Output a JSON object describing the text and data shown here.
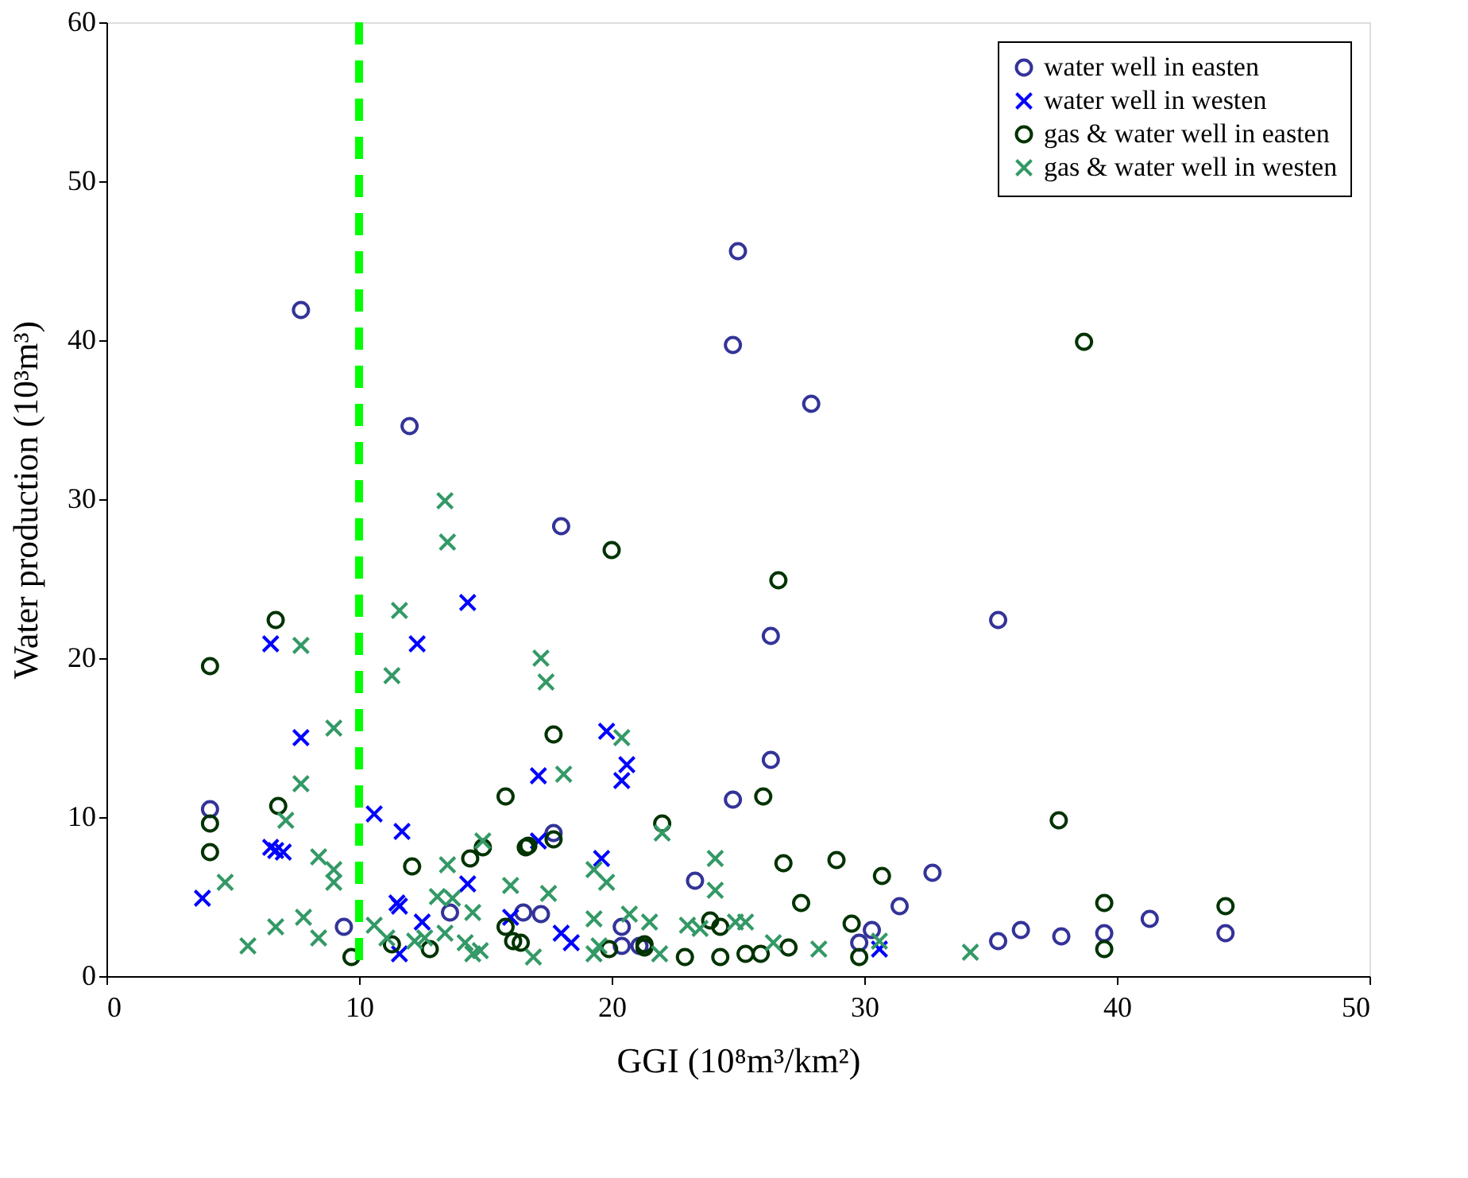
{
  "chart_data": {
    "type": "scatter",
    "xlabel": "GGI  (10⁸m³/km²)",
    "ylabel": "Water production (10³m³)",
    "xlim": [
      0,
      50
    ],
    "xticks": [
      0,
      10,
      20,
      30,
      40,
      50
    ],
    "ylim": [
      0,
      60
    ],
    "yticks": [
      0,
      10,
      20,
      30,
      40,
      50,
      60
    ],
    "grid": false,
    "legend": "top right",
    "series": [
      {
        "name": "water well in easten",
        "color": "#333399",
        "marker": "circle",
        "x": [
          7.7,
          12.0,
          18.0,
          25.0,
          24.8,
          27.9,
          26.3,
          35.3,
          26.3,
          24.8,
          4.1,
          9.4,
          13.6,
          16.5,
          17.2,
          17.7,
          20.4,
          20.4,
          21.1,
          23.3,
          32.7,
          31.4,
          30.3,
          29.8,
          35.3,
          36.2,
          37.8,
          39.5,
          41.3,
          44.3
        ],
        "values": [
          41.9,
          34.6,
          28.3,
          45.6,
          39.7,
          36.0,
          21.4,
          22.4,
          13.6,
          11.1,
          10.5,
          3.1,
          4.0,
          4.0,
          3.9,
          9.0,
          3.1,
          1.9,
          1.9,
          6.0,
          6.5,
          4.4,
          2.9,
          2.1,
          2.2,
          2.9,
          2.5,
          2.7,
          3.6,
          2.7
        ]
      },
      {
        "name": "water well in westen",
        "color": "#0000ff",
        "marker": "cross",
        "x": [
          6.5,
          12.3,
          14.3,
          7.7,
          10.6,
          11.7,
          6.5,
          6.7,
          7.0,
          3.8,
          11.5,
          11.6,
          14.3,
          12.5,
          11.6,
          16.0,
          19.8,
          17.1,
          20.6,
          20.4,
          17.1,
          19.6,
          18.0,
          18.4,
          30.6
        ],
        "values": [
          20.9,
          20.9,
          23.5,
          15.0,
          10.2,
          9.1,
          8.1,
          7.9,
          7.8,
          4.9,
          4.6,
          4.4,
          5.8,
          3.4,
          1.4,
          3.7,
          15.4,
          12.6,
          13.3,
          12.3,
          8.5,
          7.4,
          2.7,
          2.1,
          1.7
        ]
      },
      {
        "name": "gas & water well in easten",
        "color": "#003300",
        "marker": "circle",
        "x": [
          6.7,
          4.1,
          4.1,
          6.8,
          4.1,
          12.1,
          15.8,
          14.4,
          14.9,
          16.6,
          15.8,
          16.1,
          16.4,
          11.3,
          12.8,
          9.7,
          20.0,
          17.7,
          22.0,
          26.0,
          16.7,
          17.7,
          26.8,
          28.9,
          30.7,
          27.5,
          29.5,
          23.9,
          24.3,
          21.3,
          21.3,
          19.9,
          22.9,
          24.3,
          25.3,
          25.9,
          27.0,
          29.8,
          26.6,
          38.7,
          37.7,
          39.5,
          39.5,
          44.3
        ],
        "values": [
          22.4,
          19.5,
          9.6,
          10.7,
          7.8,
          6.9,
          11.3,
          7.4,
          8.1,
          8.1,
          3.1,
          2.2,
          2.1,
          2.0,
          1.7,
          1.2,
          26.8,
          15.2,
          9.6,
          11.3,
          8.2,
          8.6,
          7.1,
          7.3,
          6.3,
          4.6,
          3.3,
          3.5,
          3.1,
          2.0,
          1.8,
          1.7,
          1.2,
          1.2,
          1.4,
          1.4,
          1.8,
          1.2,
          24.9,
          39.9,
          9.8,
          4.6,
          1.7,
          4.4
        ]
      },
      {
        "name": "gas & water well in westen",
        "color": "#339966",
        "marker": "cross",
        "x": [
          11.6,
          7.7,
          11.3,
          9.0,
          7.7,
          7.1,
          8.4,
          9.0,
          9.0,
          4.7,
          7.8,
          6.7,
          5.6,
          8.4,
          10.6,
          11.1,
          13.5,
          14.9,
          13.1,
          13.7,
          14.5,
          16.0,
          12.2,
          12.6,
          13.4,
          14.2,
          14.5,
          14.8,
          13.4,
          13.5,
          17.2,
          17.4,
          18.1,
          20.4,
          22.0,
          24.1,
          24.1,
          19.3,
          19.8,
          17.5,
          19.3,
          20.7,
          21.5,
          19.3,
          19.5,
          16.9,
          21.9,
          23.0,
          23.5,
          24.9,
          25.3,
          26.4,
          28.2,
          30.6,
          34.2
        ],
        "values": [
          23.0,
          20.8,
          18.9,
          15.6,
          12.1,
          9.8,
          7.5,
          6.7,
          5.9,
          5.9,
          3.7,
          3.1,
          1.9,
          2.4,
          3.2,
          2.4,
          7.0,
          8.5,
          5.0,
          4.9,
          4.0,
          5.7,
          2.2,
          2.4,
          2.7,
          2.1,
          1.4,
          1.6,
          29.9,
          27.3,
          20.0,
          18.5,
          12.7,
          15.0,
          9.0,
          7.4,
          5.4,
          6.7,
          5.9,
          5.2,
          3.6,
          3.9,
          3.4,
          1.4,
          1.9,
          1.2,
          1.4,
          3.2,
          3.0,
          3.4,
          3.4,
          2.1,
          1.7,
          2.2,
          1.5
        ]
      }
    ],
    "ref_lines": [
      {
        "axis": "x",
        "value": 10,
        "color": "#00ff00",
        "line_style": "dashed"
      }
    ]
  }
}
